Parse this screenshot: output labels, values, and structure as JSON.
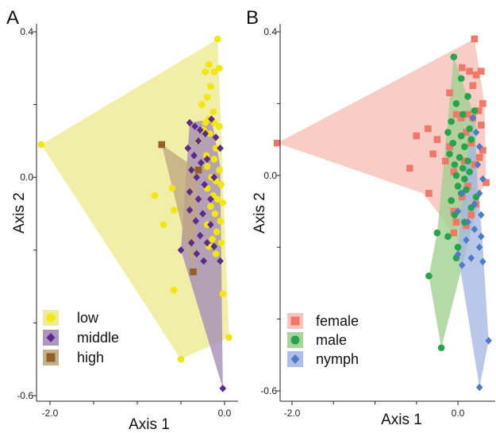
{
  "chart_data": [
    {
      "type": "scatter",
      "panel_label": "A",
      "xlabel": "Axis 1",
      "ylabel": "Axis 2",
      "xlim": [
        -2.25,
        0.2
      ],
      "ylim": [
        -0.64,
        0.43
      ],
      "x_ticks": [
        {
          "value": -2.0,
          "label": "-2.0"
        },
        {
          "value": 0.0,
          "label": "0.0"
        }
      ],
      "x_minor_ticks": [
        -1.5,
        -1.0,
        -0.5
      ],
      "y_ticks": [
        {
          "value": 0.4,
          "label": "0.4"
        },
        {
          "value": 0.0,
          "label": "0.0"
        },
        {
          "value": -0.6,
          "label": "-0.6"
        }
      ],
      "y_minor_ticks": [
        0.2,
        -0.2,
        -0.4
      ],
      "legend_position": "bottom-left",
      "series": [
        {
          "name": "low",
          "marker": "circle",
          "color": "#f2e60f",
          "hull_color": "#ece98e",
          "hull": [
            [
              -0.08,
              0.38
            ],
            [
              0.05,
              -0.44
            ],
            [
              -0.5,
              -0.5
            ],
            [
              -2.1,
              0.09
            ]
          ],
          "points": [
            [
              -0.08,
              0.38
            ],
            [
              -0.18,
              0.31
            ],
            [
              -0.12,
              0.29
            ],
            [
              -0.06,
              0.3
            ],
            [
              -0.22,
              0.29
            ],
            [
              -0.16,
              0.25
            ],
            [
              -0.2,
              0.22
            ],
            [
              -0.26,
              0.2
            ],
            [
              -0.13,
              0.18
            ],
            [
              -0.18,
              0.16
            ],
            [
              -0.22,
              0.15
            ],
            [
              -0.12,
              0.15
            ],
            [
              -0.06,
              0.14
            ],
            [
              -0.24,
              0.13
            ],
            [
              -0.17,
              0.12
            ],
            [
              -0.3,
              0.1
            ],
            [
              -0.1,
              0.08
            ],
            [
              -0.21,
              0.06
            ],
            [
              -0.12,
              0.05
            ],
            [
              -0.2,
              0.03
            ],
            [
              -0.06,
              0.02
            ],
            [
              -0.15,
              0.0
            ],
            [
              -0.1,
              -0.01
            ],
            [
              -0.04,
              -0.02
            ],
            [
              -0.2,
              -0.03
            ],
            [
              -0.13,
              -0.05
            ],
            [
              -0.08,
              -0.06
            ],
            [
              -0.02,
              -0.07
            ],
            [
              -0.16,
              -0.08
            ],
            [
              -0.11,
              -0.1
            ],
            [
              -0.05,
              -0.12
            ],
            [
              -0.2,
              -0.13
            ],
            [
              -0.09,
              -0.15
            ],
            [
              -0.14,
              -0.17
            ],
            [
              -0.04,
              -0.18
            ],
            [
              -0.18,
              -0.19
            ],
            [
              -0.1,
              -0.21
            ],
            [
              -0.6,
              -0.03
            ],
            [
              -0.8,
              -0.05
            ],
            [
              -0.58,
              -0.09
            ],
            [
              -0.7,
              -0.13
            ],
            [
              -0.02,
              -0.32
            ],
            [
              -0.58,
              -0.31
            ],
            [
              -0.5,
              -0.5
            ],
            [
              0.05,
              -0.44
            ],
            [
              -2.1,
              0.09
            ]
          ]
        },
        {
          "name": "middle",
          "marker": "diamond",
          "color": "#5c2a8a",
          "hull_color": "#a38cb6",
          "hull": [
            [
              -0.15,
              0.16
            ],
            [
              -0.05,
              0.03
            ],
            [
              -0.02,
              -0.58
            ],
            [
              -0.5,
              -0.2
            ],
            [
              -0.4,
              0.15
            ]
          ],
          "points": [
            [
              -0.4,
              0.15
            ],
            [
              -0.34,
              0.14
            ],
            [
              -0.28,
              0.13
            ],
            [
              -0.15,
              0.16
            ],
            [
              -0.22,
              0.12
            ],
            [
              -0.1,
              0.11
            ],
            [
              -0.3,
              0.1
            ],
            [
              -0.42,
              0.08
            ],
            [
              -0.05,
              0.08
            ],
            [
              -0.35,
              0.06
            ],
            [
              -0.2,
              0.05
            ],
            [
              -0.27,
              0.04
            ],
            [
              -0.38,
              0.02
            ],
            [
              -0.32,
              0.0
            ],
            [
              -0.12,
              0.0
            ],
            [
              -0.23,
              -0.02
            ],
            [
              -0.4,
              -0.04
            ],
            [
              -0.3,
              -0.06
            ],
            [
              -0.16,
              -0.06
            ],
            [
              -0.4,
              -0.09
            ],
            [
              -0.25,
              -0.1
            ],
            [
              -0.33,
              -0.12
            ],
            [
              -0.16,
              -0.13
            ],
            [
              -0.28,
              -0.16
            ],
            [
              -0.38,
              -0.18
            ],
            [
              -0.2,
              -0.18
            ],
            [
              -0.12,
              -0.19
            ],
            [
              -0.5,
              -0.2
            ],
            [
              -0.32,
              -0.21
            ],
            [
              -0.24,
              -0.23
            ],
            [
              -0.05,
              -0.23
            ],
            [
              -0.02,
              -0.58
            ]
          ]
        },
        {
          "name": "high",
          "marker": "square",
          "color": "#94602a",
          "hull_color": "#bfa880",
          "hull": [
            [
              -0.72,
              0.09
            ],
            [
              -0.3,
              0.02
            ],
            [
              -0.36,
              -0.26
            ]
          ],
          "points": [
            [
              -0.72,
              0.09
            ],
            [
              -0.3,
              0.02
            ],
            [
              -0.36,
              -0.26
            ]
          ]
        }
      ]
    },
    {
      "type": "scatter",
      "panel_label": "B",
      "xlabel": "Axis 1",
      "ylabel": "Axis 2",
      "xlim": [
        -2.25,
        0.4
      ],
      "ylim": [
        -0.63,
        0.43
      ],
      "x_ticks": [
        {
          "value": -2.0,
          "label": "-2.0"
        },
        {
          "value": 0.0,
          "label": "0.0"
        }
      ],
      "x_minor_ticks": [
        -1.5,
        -1.0,
        -0.5
      ],
      "y_ticks": [
        {
          "value": 0.4,
          "label": "0.4"
        },
        {
          "value": 0.0,
          "label": "0.0"
        },
        {
          "value": -0.6,
          "label": "-0.6"
        }
      ],
      "y_minor_ticks": [
        0.2,
        -0.2,
        -0.4
      ],
      "legend_position": "bottom-left",
      "series": [
        {
          "name": "female",
          "marker": "square",
          "color": "#f0786a",
          "hull_color": "#f6bfb6",
          "hull": [
            [
              0.2,
              0.38
            ],
            [
              0.32,
              0.2
            ],
            [
              0.34,
              -0.02
            ],
            [
              -0.05,
              -0.16
            ],
            [
              -0.42,
              -0.05
            ],
            [
              -2.18,
              0.09
            ]
          ],
          "points": [
            [
              0.2,
              0.38
            ],
            [
              0.05,
              0.3
            ],
            [
              0.14,
              0.29
            ],
            [
              0.22,
              0.28
            ],
            [
              0.28,
              0.29
            ],
            [
              0.18,
              0.25
            ],
            [
              -0.1,
              0.23
            ],
            [
              0.3,
              0.2
            ],
            [
              0.25,
              0.18
            ],
            [
              -0.02,
              0.17
            ],
            [
              0.12,
              0.17
            ],
            [
              0.04,
              0.16
            ],
            [
              0.18,
              0.16
            ],
            [
              0.28,
              0.14
            ],
            [
              -0.36,
              0.13
            ],
            [
              0.1,
              0.12
            ],
            [
              -0.5,
              0.11
            ],
            [
              -0.25,
              0.1
            ],
            [
              0.16,
              0.09
            ],
            [
              -0.1,
              0.08
            ],
            [
              0.3,
              0.07
            ],
            [
              -0.3,
              0.06
            ],
            [
              0.26,
              0.05
            ],
            [
              -0.15,
              0.04
            ],
            [
              0.08,
              0.04
            ],
            [
              0.2,
              0.03
            ],
            [
              -0.58,
              0.02
            ],
            [
              -0.05,
              0.01
            ],
            [
              0.34,
              -0.02
            ],
            [
              0.12,
              -0.03
            ],
            [
              -0.35,
              -0.05
            ],
            [
              0.05,
              -0.06
            ],
            [
              0.22,
              -0.08
            ],
            [
              -0.05,
              -0.1
            ],
            [
              0.16,
              -0.11
            ],
            [
              -0.02,
              -0.13
            ],
            [
              0.1,
              -0.14
            ],
            [
              -0.05,
              -0.16
            ],
            [
              -2.18,
              0.09
            ]
          ]
        },
        {
          "name": "male",
          "marker": "circle",
          "color": "#27a34a",
          "hull_color": "#9fcf8e",
          "hull": [
            [
              -0.05,
              0.33
            ],
            [
              0.22,
              0.15
            ],
            [
              0.22,
              -0.1
            ],
            [
              -0.2,
              -0.48
            ],
            [
              -0.35,
              -0.28
            ],
            [
              -0.25,
              -0.16
            ]
          ],
          "points": [
            [
              -0.05,
              0.33
            ],
            [
              0.04,
              0.27
            ],
            [
              0.12,
              0.22
            ],
            [
              -0.02,
              0.2
            ],
            [
              0.2,
              0.18
            ],
            [
              0.06,
              0.17
            ],
            [
              -0.08,
              0.15
            ],
            [
              0.14,
              0.13
            ],
            [
              -0.12,
              0.12
            ],
            [
              0.04,
              0.11
            ],
            [
              0.16,
              0.1
            ],
            [
              -0.06,
              0.09
            ],
            [
              0.08,
              0.08
            ],
            [
              -0.1,
              0.06
            ],
            [
              0.02,
              0.05
            ],
            [
              0.12,
              0.04
            ],
            [
              -0.04,
              0.03
            ],
            [
              0.06,
              0.02
            ],
            [
              0.14,
              0.01
            ],
            [
              -0.02,
              0.0
            ],
            [
              0.08,
              -0.01
            ],
            [
              0.0,
              -0.03
            ],
            [
              0.1,
              -0.04
            ],
            [
              0.04,
              -0.05
            ],
            [
              0.22,
              -0.06
            ],
            [
              -0.08,
              -0.07
            ],
            [
              0.16,
              -0.09
            ],
            [
              -0.04,
              -0.11
            ],
            [
              0.08,
              -0.13
            ],
            [
              -0.25,
              -0.16
            ],
            [
              -0.12,
              -0.17
            ],
            [
              0.0,
              -0.2
            ],
            [
              -0.02,
              -0.23
            ],
            [
              -0.35,
              -0.28
            ],
            [
              -0.2,
              -0.48
            ]
          ]
        },
        {
          "name": "nymph",
          "marker": "diamond",
          "color": "#4f7ac6",
          "hull_color": "#a5b7e3",
          "hull": [
            [
              0.18,
              0.16
            ],
            [
              0.3,
              -0.2
            ],
            [
              0.37,
              -0.46
            ],
            [
              0.26,
              -0.59
            ],
            [
              0.0,
              -0.22
            ],
            [
              0.05,
              -0.05
            ]
          ],
          "points": [
            [
              0.18,
              0.16
            ],
            [
              0.22,
              0.12
            ],
            [
              0.26,
              0.08
            ],
            [
              0.24,
              0.03
            ],
            [
              0.3,
              -0.01
            ],
            [
              0.26,
              -0.05
            ],
            [
              0.05,
              -0.05
            ],
            [
              0.2,
              -0.08
            ],
            [
              0.0,
              -0.1
            ],
            [
              0.28,
              -0.11
            ],
            [
              0.12,
              -0.13
            ],
            [
              0.2,
              -0.15
            ],
            [
              0.28,
              -0.17
            ],
            [
              0.1,
              -0.18
            ],
            [
              0.0,
              -0.22
            ],
            [
              0.16,
              -0.23
            ],
            [
              0.05,
              -0.25
            ],
            [
              0.3,
              -0.24
            ],
            [
              0.26,
              -0.2
            ],
            [
              0.37,
              -0.46
            ],
            [
              0.26,
              -0.59
            ]
          ]
        }
      ]
    }
  ]
}
